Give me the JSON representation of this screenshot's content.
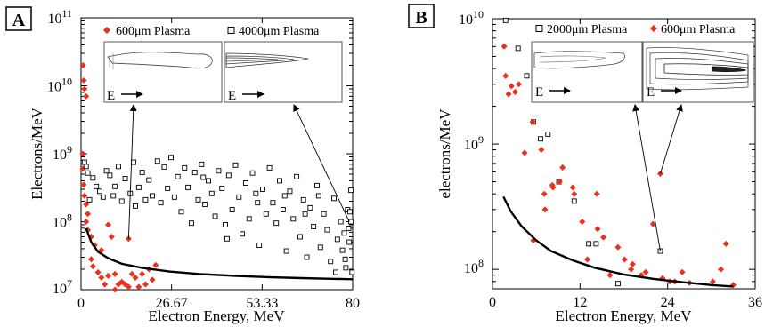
{
  "chart_data": [
    {
      "type": "scatter",
      "panel_label": "A",
      "title": "",
      "xlabel": "Electron Energy, MeV",
      "ylabel": "Electrons/MeV",
      "xlim": [
        0,
        80
      ],
      "ylim": [
        10000000,
        100000000000
      ],
      "y_scale": "log",
      "x_ticks": [
        "0",
        "26.67",
        "53.33",
        "80"
      ],
      "y_ticks": [
        "10^7",
        "10^8",
        "10^9",
        "10^10",
        "10^11"
      ],
      "grid": false,
      "legend_position": "top",
      "series": [
        {
          "name": "600μm Plasma",
          "marker": "filled-diamond",
          "color": "#e8321e",
          "points": [
            [
              0.6,
              20000000000
            ],
            [
              0.8,
              12000000000
            ],
            [
              1.0,
              9000000000
            ],
            [
              1.5,
              7000000000
            ],
            [
              0.5,
              1000000000
            ],
            [
              0.5,
              600000000
            ],
            [
              0.8,
              350000000
            ],
            [
              1.0,
              240000000
            ],
            [
              1.5,
              180000000
            ],
            [
              2.0,
              130000000
            ],
            [
              1.5,
              100000000
            ],
            [
              2.0,
              75000000
            ],
            [
              3.0,
              60000000
            ],
            [
              4.0,
              45000000
            ],
            [
              6.0,
              38000000
            ],
            [
              8.0,
              90000000
            ],
            [
              9.0,
              60000000
            ],
            [
              14.0,
              56000000
            ],
            [
              3.0,
              28000000
            ],
            [
              3.5,
              22000000
            ],
            [
              5.0,
              18000000
            ],
            [
              6.0,
              15000000
            ],
            [
              7.0,
              12000000
            ],
            [
              8.0,
              16000000
            ],
            [
              10.0,
              17000000
            ],
            [
              11.0,
              12000000
            ],
            [
              12.0,
              13000000
            ],
            [
              13.0,
              12000000
            ],
            [
              14.0,
              11000000
            ],
            [
              15.0,
              17000000
            ],
            [
              16.0,
              15000000
            ],
            [
              18.0,
              17000000
            ],
            [
              20.0,
              20000000
            ],
            [
              21.0,
              14000000
            ],
            [
              22.0,
              23000000
            ],
            [
              17.0,
              11000000
            ],
            [
              19.0,
              12000000
            ],
            [
              10.0,
              10000000
            ]
          ]
        },
        {
          "name": "4000μm Plasma",
          "marker": "open-square",
          "color": "#000000",
          "points": [
            [
              1.0,
              750000000
            ],
            [
              1.5,
              650000000
            ],
            [
              2.0,
              520000000
            ],
            [
              3.5,
              440000000
            ],
            [
              4.5,
              330000000
            ],
            [
              5.5,
              280000000
            ],
            [
              6.5,
              230000000
            ],
            [
              7.5,
              560000000
            ],
            [
              8.5,
              480000000
            ],
            [
              9.5,
              240000000
            ],
            [
              11.0,
              650000000
            ],
            [
              12.0,
              200000000
            ],
            [
              13.0,
              430000000
            ],
            [
              14.5,
              260000000
            ],
            [
              15.5,
              750000000
            ],
            [
              17.0,
              320000000
            ],
            [
              18.0,
              530000000
            ],
            [
              19.0,
              210000000
            ],
            [
              20.0,
              410000000
            ],
            [
              21.0,
              240000000
            ],
            [
              22.5,
              780000000
            ],
            [
              23.5,
              190000000
            ],
            [
              24.5,
              640000000
            ],
            [
              25.5,
              310000000
            ],
            [
              26.5,
              880000000
            ],
            [
              27.5,
              230000000
            ],
            [
              28.5,
              460000000
            ],
            [
              29.5,
              140000000
            ],
            [
              30.5,
              620000000
            ],
            [
              31.5,
              320000000
            ],
            [
              32.5,
              95000000
            ],
            [
              33.5,
              530000000
            ],
            [
              34.5,
              210000000
            ],
            [
              35.5,
              700000000
            ],
            [
              36.5,
              180000000
            ],
            [
              37.5,
              400000000
            ],
            [
              38.5,
              260000000
            ],
            [
              39.5,
              120000000
            ],
            [
              40.5,
              560000000
            ],
            [
              41.5,
              310000000
            ],
            [
              42.5,
              90000000
            ],
            [
              43.5,
              480000000
            ],
            [
              44.5,
              150000000
            ],
            [
              45.5,
              680000000
            ],
            [
              46.5,
              230000000
            ],
            [
              47.5,
              66000000
            ],
            [
              48.5,
              370000000
            ],
            [
              49.5,
              110000000
            ],
            [
              50.5,
              520000000
            ],
            [
              51.5,
              260000000
            ],
            [
              52.5,
              45000000
            ],
            [
              53.5,
              300000000
            ],
            [
              54.5,
              130000000
            ],
            [
              55.5,
              620000000
            ],
            [
              56.5,
              190000000
            ],
            [
              57.5,
              95000000
            ],
            [
              58.5,
              400000000
            ],
            [
              59.5,
              150000000
            ],
            [
              60.5,
              37000000
            ],
            [
              61.5,
              280000000
            ],
            [
              62.5,
              110000000
            ],
            [
              63.5,
              460000000
            ],
            [
              64.5,
              60000000
            ],
            [
              65.5,
              210000000
            ],
            [
              66.5,
              30000000
            ],
            [
              67.5,
              160000000
            ],
            [
              68.5,
              85000000
            ],
            [
              69.5,
              340000000
            ],
            [
              70.5,
              42000000
            ],
            [
              71.5,
              130000000
            ],
            [
              72.5,
              76000000
            ],
            [
              73.5,
              26000000
            ],
            [
              74.5,
              220000000
            ],
            [
              75.5,
              55000000
            ],
            [
              76.5,
              100000000
            ],
            [
              77.0,
              38000000
            ],
            [
              77.5,
              68000000
            ],
            [
              78.0,
              21000000
            ],
            [
              78.5,
              150000000
            ],
            [
              79.0,
              50000000
            ],
            [
              79.5,
              290000000
            ],
            [
              79.8,
              18000000
            ],
            [
              79.5,
              100000000
            ],
            [
              78.8,
              80000000
            ],
            [
              77.8,
              28000000
            ],
            [
              79.2,
              140000000
            ],
            [
              2.5,
              210000000
            ],
            [
              10.0,
              330000000
            ],
            [
              16.0,
              170000000
            ],
            [
              36.0,
              450000000
            ],
            [
              43.0,
              56000000
            ],
            [
              52.0,
              190000000
            ],
            [
              60.0,
              240000000
            ],
            [
              66.0,
              130000000
            ],
            [
              70.0,
              240000000
            ],
            [
              75.0,
              18000000
            ]
          ]
        },
        {
          "name": "",
          "kind": "curve",
          "marker": "line",
          "color": "#000000",
          "points": [
            [
              1.5,
              80000000
            ],
            [
              3,
              50000000
            ],
            [
              5,
              36000000
            ],
            [
              8,
              29000000
            ],
            [
              12,
              24000000
            ],
            [
              18,
              21000000
            ],
            [
              26,
              18500000
            ],
            [
              35,
              17000000
            ],
            [
              45,
              16000000
            ],
            [
              55,
              15300000
            ],
            [
              65,
              14800000
            ],
            [
              75,
              14400000
            ],
            [
              80,
              14200000
            ]
          ]
        }
      ],
      "insets": [
        {
          "label": "E",
          "arrow_to": [
            14.0,
            56000000
          ]
        },
        {
          "label": "E",
          "arrow_to": [
            79.0,
            100000000
          ]
        }
      ]
    },
    {
      "type": "scatter",
      "panel_label": "B",
      "title": "",
      "xlabel": "Electron Energy, MeV",
      "ylabel": "electrons/MeV",
      "xlim": [
        0,
        36
      ],
      "ylim": [
        70000000,
        10000000000
      ],
      "y_scale": "log",
      "x_ticks": [
        "0",
        "12",
        "24",
        "36"
      ],
      "y_ticks": [
        "10^8",
        "10^9",
        "10^10"
      ],
      "grid": false,
      "legend_position": "top",
      "series": [
        {
          "name": "2000μm Plasma",
          "marker": "open-square",
          "color": "#000000",
          "points": [
            [
              1.8,
              9700000000
            ],
            [
              3.5,
              5800000000
            ],
            [
              4.7,
              3500000000
            ],
            [
              5.6,
              1500000000
            ],
            [
              6.6,
              1100000000
            ],
            [
              7.6,
              1200000000
            ],
            [
              9.1,
              500000000
            ],
            [
              11.2,
              350000000
            ],
            [
              13.2,
              160000000
            ],
            [
              14.2,
              160000000
            ],
            [
              17.2,
              77000000
            ],
            [
              23.0,
              140000000
            ]
          ]
        },
        {
          "name": "600μm Plasma",
          "marker": "filled-diamond",
          "color": "#e8321e",
          "points": [
            [
              1.6,
              6000000000
            ],
            [
              1.8,
              3500000000
            ],
            [
              2.2,
              2500000000
            ],
            [
              2.6,
              2900000000
            ],
            [
              3.1,
              2600000000
            ],
            [
              3.6,
              3000000000
            ],
            [
              4.4,
              850000000
            ],
            [
              5.5,
              1500000000
            ],
            [
              5.6,
              170000000
            ],
            [
              6.7,
              900000000
            ],
            [
              7.1,
              400000000
            ],
            [
              7.2,
              300000000
            ],
            [
              8.2,
              470000000
            ],
            [
              8.3,
              450000000
            ],
            [
              9.2,
              500000000
            ],
            [
              9.6,
              650000000
            ],
            [
              11.0,
              450000000
            ],
            [
              11.2,
              400000000
            ],
            [
              12.3,
              240000000
            ],
            [
              13.0,
              120000000
            ],
            [
              14.3,
              400000000
            ],
            [
              14.4,
              210000000
            ],
            [
              15.2,
              180000000
            ],
            [
              16.1,
              90000000
            ],
            [
              17.2,
              150000000
            ],
            [
              18.1,
              120000000
            ],
            [
              19.0,
              100000000
            ],
            [
              19.2,
              110000000
            ],
            [
              20.4,
              90000000
            ],
            [
              21.0,
              95000000
            ],
            [
              22.0,
              230000000
            ],
            [
              23.0,
              580000000
            ],
            [
              23.3,
              85000000
            ],
            [
              24.3,
              80000000
            ],
            [
              25.0,
              80000000
            ],
            [
              26.0,
              95000000
            ],
            [
              27.0,
              78000000
            ],
            [
              30.2,
              80000000
            ],
            [
              31.3,
              100000000
            ],
            [
              32.0,
              160000000
            ],
            [
              33.0,
              75000000
            ]
          ]
        },
        {
          "name": "",
          "kind": "curve",
          "marker": "line",
          "color": "#000000",
          "points": [
            [
              1.5,
              380000000
            ],
            [
              2.5,
              290000000
            ],
            [
              4,
              220000000
            ],
            [
              6,
              170000000
            ],
            [
              8,
              140000000
            ],
            [
              11,
              118000000
            ],
            [
              14,
              103000000
            ],
            [
              18,
              91000000
            ],
            [
              22,
              84000000
            ],
            [
              26,
              79000000
            ],
            [
              30,
              75000000
            ],
            [
              33,
              73000000
            ]
          ]
        }
      ],
      "insets": [
        {
          "label": "E",
          "arrow_to": [
            23.0,
            140000000
          ]
        },
        {
          "label": "E",
          "arrow_to": [
            23.0,
            580000000
          ]
        }
      ]
    }
  ]
}
